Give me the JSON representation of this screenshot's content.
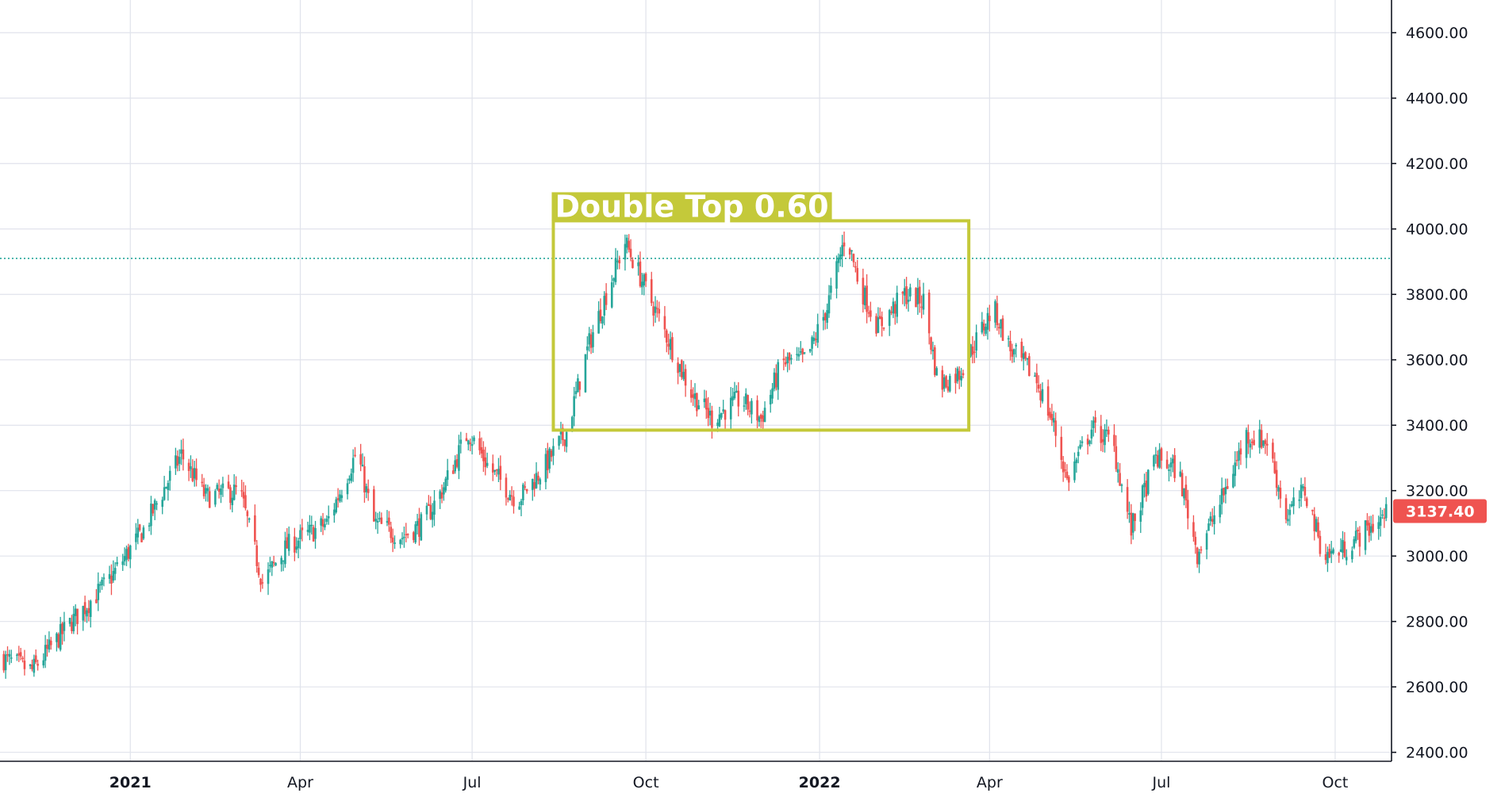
{
  "chart_data": {
    "type": "candlestick",
    "y_ticks": [
      "4600.00",
      "4400.00",
      "4200.00",
      "4000.00",
      "3800.00",
      "3600.00",
      "3400.00",
      "3200.00",
      "3000.00",
      "2800.00",
      "2600.00",
      "2400.00"
    ],
    "y_tick_values": [
      4600,
      4400,
      4200,
      4000,
      3800,
      3600,
      3400,
      3200,
      3000,
      2800,
      2600,
      2400
    ],
    "x_ticks": [
      {
        "label": "2021",
        "date": "2021-01-01",
        "bold": true
      },
      {
        "label": "Apr",
        "date": "2021-04-01",
        "bold": false
      },
      {
        "label": "Jul",
        "date": "2021-07-01",
        "bold": false
      },
      {
        "label": "Oct",
        "date": "2021-10-01",
        "bold": false
      },
      {
        "label": "2022",
        "date": "2022-01-01",
        "bold": true
      },
      {
        "label": "Apr",
        "date": "2022-04-01",
        "bold": false
      },
      {
        "label": "Jul",
        "date": "2022-07-01",
        "bold": false
      },
      {
        "label": "Oct",
        "date": "2022-10-01",
        "bold": false
      }
    ],
    "x_range": [
      "2020-10-24",
      "2022-10-30"
    ],
    "y_range": [
      2375,
      4700
    ],
    "grid": true,
    "last_price": {
      "label": "3137.40",
      "value": 3137.4,
      "color": "#ef5350"
    },
    "reference_line": {
      "value": 3910,
      "color": "#26a69a",
      "style": "dotted"
    },
    "up_color": "#26a69a",
    "down_color": "#ef5350",
    "price_path": [
      [
        "2020-10-24",
        2690
      ],
      [
        "2020-11-10",
        2650
      ],
      [
        "2020-12-01",
        2800
      ],
      [
        "2020-12-20",
        2920
      ],
      [
        "2021-01-08",
        3080
      ],
      [
        "2021-01-28",
        3310
      ],
      [
        "2021-02-10",
        3180
      ],
      [
        "2021-02-28",
        3200
      ],
      [
        "2021-03-12",
        2920
      ],
      [
        "2021-03-25",
        3030
      ],
      [
        "2021-04-15",
        3100
      ],
      [
        "2021-05-01",
        3320
      ],
      [
        "2021-05-10",
        3100
      ],
      [
        "2021-05-25",
        3060
      ],
      [
        "2021-06-05",
        3100
      ],
      [
        "2021-06-15",
        3200
      ],
      [
        "2021-06-29",
        3380
      ],
      [
        "2021-07-10",
        3270
      ],
      [
        "2021-07-25",
        3170
      ],
      [
        "2021-08-08",
        3270
      ],
      [
        "2021-08-20",
        3380
      ],
      [
        "2021-09-01",
        3650
      ],
      [
        "2021-09-10",
        3800
      ],
      [
        "2021-09-20",
        3960
      ],
      [
        "2021-10-03",
        3790
      ],
      [
        "2021-10-10",
        3700
      ],
      [
        "2021-10-25",
        3500
      ],
      [
        "2021-11-05",
        3420
      ],
      [
        "2021-11-20",
        3480
      ],
      [
        "2021-12-01",
        3420
      ],
      [
        "2021-12-12",
        3590
      ],
      [
        "2021-12-25",
        3600
      ],
      [
        "2022-01-05",
        3760
      ],
      [
        "2022-01-15",
        3990
      ],
      [
        "2022-01-22",
        3830
      ],
      [
        "2022-02-01",
        3700
      ],
      [
        "2022-02-15",
        3800
      ],
      [
        "2022-02-25",
        3780
      ],
      [
        "2022-03-05",
        3520
      ],
      [
        "2022-03-16",
        3560
      ],
      [
        "2022-03-25",
        3660
      ],
      [
        "2022-04-03",
        3760
      ],
      [
        "2022-04-12",
        3630
      ],
      [
        "2022-04-25",
        3550
      ],
      [
        "2022-05-05",
        3400
      ],
      [
        "2022-05-12",
        3230
      ],
      [
        "2022-05-25",
        3390
      ],
      [
        "2022-06-05",
        3350
      ],
      [
        "2022-06-15",
        3080
      ],
      [
        "2022-06-28",
        3300
      ],
      [
        "2022-07-10",
        3260
      ],
      [
        "2022-07-20",
        3010
      ],
      [
        "2022-08-01",
        3160
      ],
      [
        "2022-08-15",
        3370
      ],
      [
        "2022-08-26",
        3350
      ],
      [
        "2022-09-05",
        3120
      ],
      [
        "2022-09-15",
        3200
      ],
      [
        "2022-09-25",
        3000
      ],
      [
        "2022-10-05",
        3020
      ],
      [
        "2022-10-30",
        3137
      ]
    ],
    "annotation": {
      "label": "Double Top 0.60",
      "date_start": "2021-08-13",
      "date_end": "2022-03-21",
      "price_low": 3385,
      "price_high": 4025,
      "color": "#c4c93a"
    }
  }
}
